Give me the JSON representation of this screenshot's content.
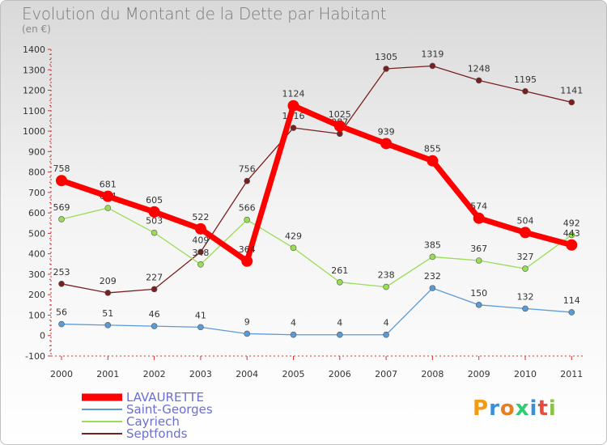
{
  "chart_data": {
    "type": "line",
    "title": "Evolution du Montant de la Dette par Habitant",
    "subtitle": "(en €)",
    "x": [
      "2000",
      "2001",
      "2002",
      "2003",
      "2004",
      "2005",
      "2006",
      "2007",
      "2008",
      "2009",
      "2010",
      "2011"
    ],
    "ylim": [
      -100,
      1400
    ],
    "yticks": [
      -100,
      0,
      100,
      200,
      300,
      400,
      500,
      600,
      700,
      800,
      900,
      1000,
      1100,
      1200,
      1300,
      1400
    ],
    "grid": false,
    "legend_position": "bottom-left",
    "series": [
      {
        "name": "LAVAURETTE",
        "color": "#ff0000",
        "values": [
          758,
          681,
          605,
          522,
          364,
          1124,
          1025,
          939,
          855,
          574,
          504,
          443
        ]
      },
      {
        "name": "Saint-Georges",
        "color": "#5b9bd5",
        "values": [
          56,
          51,
          46,
          41,
          9,
          4,
          4,
          4,
          232,
          150,
          132,
          114
        ]
      },
      {
        "name": "Cayriech",
        "color": "#99dd55",
        "values": [
          569,
          624,
          503,
          348,
          566,
          429,
          261,
          238,
          385,
          367,
          327,
          492
        ]
      },
      {
        "name": "Septfonds",
        "color": "#7a1f1f",
        "values": [
          253,
          209,
          227,
          409,
          756,
          1016,
          987,
          1305,
          1319,
          1248,
          1195,
          1141
        ]
      }
    ]
  },
  "logo": {
    "text": "Proxiti"
  }
}
